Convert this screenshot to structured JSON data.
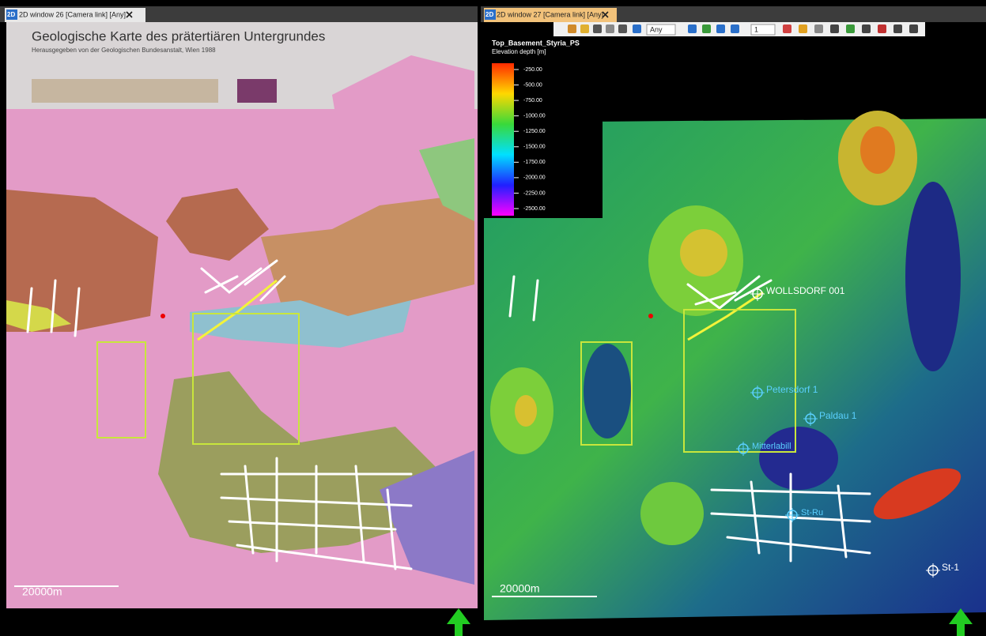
{
  "left_window": {
    "tab_icon": "2D",
    "tab_title": "2D window 26 [Camera link] [Any]",
    "map_title": "Geologische Karte des prätertiären Untergrundes",
    "map_subtitle": "Herausgegeben von der Geologischen Bundesanstalt, Wien 1988",
    "scale_label": "20000m"
  },
  "right_window": {
    "tab_icon": "2D",
    "tab_title": "2D window 27 [Camera link] [Any]",
    "toolbar": {
      "filter": "Any",
      "zoom_level": "1"
    },
    "legend": {
      "title": "Top_Basement_Styria_PS",
      "subtitle": "Elevation depth [m]",
      "labels": [
        "-250.00",
        "-500.00",
        "-750.00",
        "-1000.00",
        "-1250.00",
        "-1500.00",
        "-1750.00",
        "-2000.00",
        "-2250.00",
        "-2500.00"
      ]
    },
    "wells": [
      {
        "label": "WOLLSDORF 001"
      },
      {
        "label": "Petersdorf 1"
      },
      {
        "label": "Paldau 1"
      },
      {
        "label": "Mitterlabill"
      },
      {
        "label": "St-Ru"
      },
      {
        "label": "St-1"
      }
    ],
    "scale_label": "20000m"
  }
}
